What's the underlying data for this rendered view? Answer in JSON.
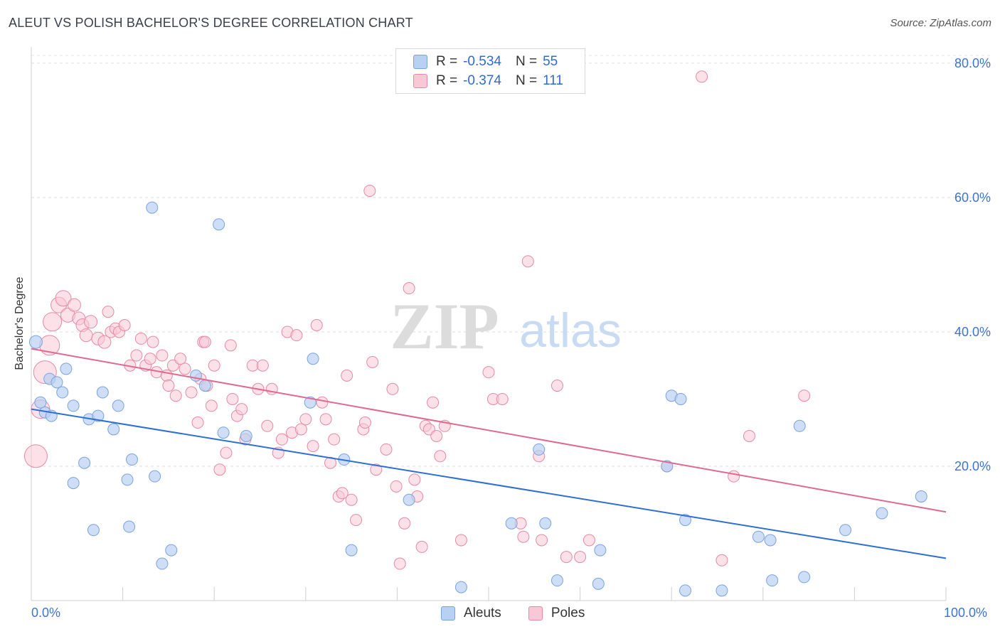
{
  "title": "ALEUT VS POLISH BACHELOR'S DEGREE CORRELATION CHART",
  "source": "Source: ZipAtlas.com",
  "watermark": {
    "zip": "ZIP",
    "atlas": "atlas"
  },
  "legend": {
    "r_label": "R =",
    "n_label": "N =",
    "aleuts": {
      "r": "-0.534",
      "n": "55"
    },
    "poles": {
      "r": "-0.374",
      "n": "111"
    }
  },
  "bottom_legend": {
    "aleuts": "Aleuts",
    "poles": "Poles"
  },
  "colors": {
    "aleuts_fill": "#b8d0f2",
    "aleuts_stroke": "#7aa3dd",
    "aleuts_line": "#2e6fd3",
    "poles_fill": "#f9c8d6",
    "poles_stroke": "#e58aa6",
    "poles_line": "#e0698f",
    "tick_text": "#3d74cf"
  },
  "chart_data": {
    "type": "scatter",
    "title": "ALEUT VS POLISH BACHELOR'S DEGREE CORRELATION CHART",
    "xlabel": "",
    "ylabel": "Bachelor's Degree",
    "xlim": [
      0,
      100
    ],
    "ylim": [
      0,
      82
    ],
    "x_ticks": [
      "0.0%",
      "100.0%"
    ],
    "y_ticks": [
      "20.0%",
      "40.0%",
      "60.0%",
      "80.0%"
    ],
    "grid": true,
    "legend_position": "top-center",
    "series": [
      {
        "name": "Aleuts",
        "trend": {
          "x": [
            0,
            100
          ],
          "y": [
            28.5,
            6.3
          ]
        },
        "points": [
          [
            0.5,
            38.5,
            9
          ],
          [
            1,
            29.5,
            8
          ],
          [
            1.5,
            28,
            8
          ],
          [
            2,
            33,
            8
          ],
          [
            2.2,
            27.5,
            8
          ],
          [
            2.8,
            32.5,
            8
          ],
          [
            3.4,
            31,
            8
          ],
          [
            3.8,
            34.5,
            8
          ],
          [
            4.6,
            29,
            8
          ],
          [
            4.6,
            17.5,
            8
          ],
          [
            5.8,
            20.5,
            8
          ],
          [
            6.3,
            27,
            8
          ],
          [
            6.8,
            10.5,
            8
          ],
          [
            7.3,
            27.5,
            8
          ],
          [
            7.8,
            31,
            8
          ],
          [
            9,
            25.5,
            8
          ],
          [
            9.5,
            29,
            8
          ],
          [
            10.5,
            18,
            8
          ],
          [
            10.7,
            11,
            8
          ],
          [
            11,
            21,
            8
          ],
          [
            13.2,
            58.5,
            8
          ],
          [
            13.5,
            18.5,
            8
          ],
          [
            14.3,
            5.5,
            8
          ],
          [
            15.3,
            7.5,
            8
          ],
          [
            18,
            33.5,
            8
          ],
          [
            19,
            32,
            8
          ],
          [
            20.5,
            56,
            8
          ],
          [
            21,
            25,
            8
          ],
          [
            23.5,
            24.5,
            8
          ],
          [
            30.5,
            29.5,
            8
          ],
          [
            30.8,
            36,
            8
          ],
          [
            34.2,
            21,
            8
          ],
          [
            35,
            7.5,
            8
          ],
          [
            41.3,
            15,
            8
          ],
          [
            47,
            2,
            8
          ],
          [
            52.5,
            11.5,
            8
          ],
          [
            55.5,
            22.5,
            8
          ],
          [
            56.2,
            11.5,
            8
          ],
          [
            57.5,
            3,
            8
          ],
          [
            62,
            2.5,
            8
          ],
          [
            62.2,
            7.5,
            8
          ],
          [
            69.5,
            20,
            8
          ],
          [
            70,
            30.5,
            8
          ],
          [
            71,
            30,
            8
          ],
          [
            71.5,
            12,
            8
          ],
          [
            71.5,
            1.5,
            8
          ],
          [
            75.5,
            1.5,
            8
          ],
          [
            79.5,
            9.5,
            8
          ],
          [
            80.8,
            9,
            8
          ],
          [
            81,
            3,
            8
          ],
          [
            84,
            26,
            8
          ],
          [
            84.5,
            3.5,
            8
          ],
          [
            89,
            10.5,
            8
          ],
          [
            93,
            13,
            8
          ],
          [
            97.3,
            15.5,
            8
          ]
        ]
      },
      {
        "name": "Poles",
        "trend": {
          "x": [
            0,
            100
          ],
          "y": [
            37.5,
            13.2
          ]
        },
        "points": [
          [
            0.5,
            21.5,
            16
          ],
          [
            1,
            28.5,
            13
          ],
          [
            1.5,
            34,
            16
          ],
          [
            2,
            38,
            14
          ],
          [
            2.3,
            41.5,
            13
          ],
          [
            3,
            44,
            11
          ],
          [
            3.5,
            45,
            11
          ],
          [
            4,
            42.5,
            10
          ],
          [
            4.7,
            44,
            9
          ],
          [
            5.2,
            42,
            9
          ],
          [
            5.6,
            41,
            9
          ],
          [
            6,
            39.5,
            9
          ],
          [
            6.5,
            41.5,
            9
          ],
          [
            7.3,
            39,
            9
          ],
          [
            8,
            38.5,
            9
          ],
          [
            8.4,
            43,
            8
          ],
          [
            8.7,
            40,
            8
          ],
          [
            9.2,
            40.5,
            8
          ],
          [
            9.6,
            40,
            8
          ],
          [
            10.2,
            41,
            8
          ],
          [
            10.8,
            35,
            8
          ],
          [
            11.5,
            36.5,
            8
          ],
          [
            12,
            39,
            8
          ],
          [
            12.5,
            35,
            8
          ],
          [
            13,
            36,
            8
          ],
          [
            13.3,
            38.5,
            8
          ],
          [
            13.7,
            34,
            8
          ],
          [
            14.3,
            36.5,
            8
          ],
          [
            14.8,
            33.5,
            8
          ],
          [
            15,
            32,
            8
          ],
          [
            15.5,
            35,
            8
          ],
          [
            15.8,
            30.5,
            8
          ],
          [
            16.3,
            36,
            8
          ],
          [
            16.8,
            34.5,
            8
          ],
          [
            17.5,
            31,
            8
          ],
          [
            18.2,
            26.5,
            8
          ],
          [
            18.5,
            33,
            8
          ],
          [
            18.8,
            38.5,
            8
          ],
          [
            19,
            38.5,
            8
          ],
          [
            19.2,
            32,
            8
          ],
          [
            19.7,
            29,
            8
          ],
          [
            20,
            35,
            8
          ],
          [
            20.6,
            19.5,
            8
          ],
          [
            21.3,
            22,
            8
          ],
          [
            21.8,
            38,
            8
          ],
          [
            22,
            30,
            8
          ],
          [
            22.5,
            27.5,
            8
          ],
          [
            23,
            28.5,
            8
          ],
          [
            23.4,
            24,
            8
          ],
          [
            24.2,
            35,
            8
          ],
          [
            24.8,
            31.5,
            8
          ],
          [
            25.3,
            35,
            8
          ],
          [
            25.8,
            26,
            8
          ],
          [
            26.3,
            31.5,
            8
          ],
          [
            27,
            22,
            8
          ],
          [
            27.4,
            24,
            8
          ],
          [
            28,
            40,
            8
          ],
          [
            28.5,
            25,
            8
          ],
          [
            29,
            39.5,
            8
          ],
          [
            29.5,
            25.5,
            8
          ],
          [
            30,
            27,
            8
          ],
          [
            30.8,
            23,
            8
          ],
          [
            31.2,
            41,
            8
          ],
          [
            31.8,
            29.5,
            8
          ],
          [
            32.2,
            27,
            8
          ],
          [
            32.7,
            20.5,
            8
          ],
          [
            33.1,
            24,
            8
          ],
          [
            33.6,
            15.5,
            8
          ],
          [
            34,
            16,
            8
          ],
          [
            34.5,
            33.5,
            8
          ],
          [
            35,
            15,
            8
          ],
          [
            35.5,
            12,
            8
          ],
          [
            36.3,
            25.5,
            8
          ],
          [
            36.5,
            26.5,
            8
          ],
          [
            37,
            61,
            8
          ],
          [
            37.3,
            35.5,
            8
          ],
          [
            37.7,
            19.5,
            8
          ],
          [
            38.8,
            22.5,
            8
          ],
          [
            39.5,
            31.5,
            8
          ],
          [
            39.9,
            17,
            8
          ],
          [
            40.3,
            5.5,
            8
          ],
          [
            40.8,
            11.5,
            8
          ],
          [
            41.3,
            46.5,
            8
          ],
          [
            41.9,
            18,
            8
          ],
          [
            42.2,
            15.5,
            8
          ],
          [
            42.7,
            8,
            8
          ],
          [
            43.1,
            26,
            8
          ],
          [
            43.5,
            25.5,
            8
          ],
          [
            43.9,
            29.5,
            8
          ],
          [
            44.3,
            24.5,
            8
          ],
          [
            44.7,
            21.5,
            8
          ],
          [
            45.2,
            26,
            8
          ],
          [
            47,
            9,
            8
          ],
          [
            50,
            34,
            8
          ],
          [
            50.5,
            30,
            8
          ],
          [
            51.5,
            30,
            8
          ],
          [
            53.5,
            11.5,
            8
          ],
          [
            53.8,
            9.5,
            8
          ],
          [
            54.3,
            50.5,
            8
          ],
          [
            55.5,
            21.5,
            8
          ],
          [
            55.8,
            9,
            8
          ],
          [
            57.5,
            32,
            8
          ],
          [
            58.5,
            6.5,
            8
          ],
          [
            60,
            6.5,
            8
          ],
          [
            61,
            9,
            8
          ],
          [
            69.5,
            20,
            8
          ],
          [
            73.3,
            78,
            8
          ],
          [
            75.5,
            6,
            8
          ],
          [
            76.8,
            18.5,
            8
          ],
          [
            78.5,
            24.5,
            8
          ],
          [
            84.5,
            30.5,
            8
          ]
        ]
      }
    ]
  }
}
